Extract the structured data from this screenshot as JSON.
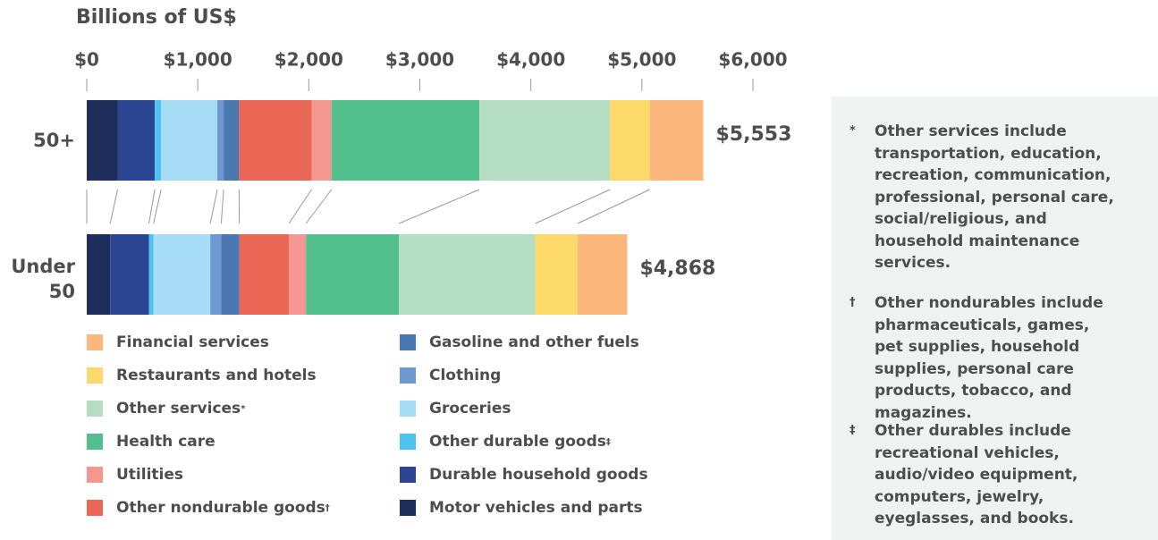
{
  "chart_data": {
    "type": "stacked_bar_horizontal",
    "title": "Billions of US$",
    "categories": [
      "50+",
      "Under 50"
    ],
    "xlim": [
      0,
      6000
    ],
    "xticks": [
      {
        "value": 0,
        "label": "$0"
      },
      {
        "value": 1000,
        "label": "$1,000"
      },
      {
        "value": 2000,
        "label": "$2,000"
      },
      {
        "value": 3000,
        "label": "$3,000"
      },
      {
        "value": 4000,
        "label": "$4,000"
      },
      {
        "value": 5000,
        "label": "$5,000"
      },
      {
        "value": 6000,
        "label": "$6,000"
      }
    ],
    "series": [
      {
        "name": "Motor vehicles and parts",
        "color": "#1f2d5c",
        "values": [
          278,
          211
        ]
      },
      {
        "name": "Durable household goods",
        "color": "#2b4593",
        "values": [
          335,
          349
        ]
      },
      {
        "name": "Other durable goods",
        "note_mark": "‡",
        "color": "#4fc3f0",
        "values": [
          57,
          41
        ]
      },
      {
        "name": "Groceries",
        "color": "#a6dcf5",
        "values": [
          506,
          512
        ]
      },
      {
        "name": "Clothing",
        "color": "#6d98d0",
        "values": [
          57,
          98
        ]
      },
      {
        "name": "Gasoline and other fuels",
        "color": "#4a78b0",
        "values": [
          139,
          163
        ]
      },
      {
        "name": "Other nondurable goods",
        "note_mark": "†",
        "color": "#ec6856",
        "values": [
          653,
          447
        ]
      },
      {
        "name": "Utilities",
        "color": "#f49791",
        "values": [
          180,
          154
        ]
      },
      {
        "name": "Health care",
        "color": "#52bf8c",
        "values": [
          1331,
          837
        ]
      },
      {
        "name": "Other services",
        "note_mark": "*",
        "color": "#b5ddc4",
        "values": [
          1176,
          1227
        ]
      },
      {
        "name": "Restaurants and hotels",
        "color": "#fcd96a",
        "values": [
          359,
          382
        ]
      },
      {
        "name": "Financial services",
        "color": "#fbb77c",
        "values": [
          482,
          447
        ]
      }
    ],
    "totals": {
      "values": [
        5553,
        4868
      ],
      "value_labels": [
        "$5,553",
        "$4,868"
      ]
    },
    "footnotes": [
      {
        "symbol": "*",
        "text": "Other services include transportation, education, recreation, communication, professional, personal care, social/religious, and household maintenance services."
      },
      {
        "symbol": "†",
        "text": "Other nondurables include pharmaceuticals, games, pet supplies, household supplies, personal care products, tobacco, and magazines."
      },
      {
        "symbol": "‡",
        "text": "Other durables include recreational vehicles, audio/video equipment, computers, jewelry, eyeglasses, and books."
      }
    ]
  }
}
